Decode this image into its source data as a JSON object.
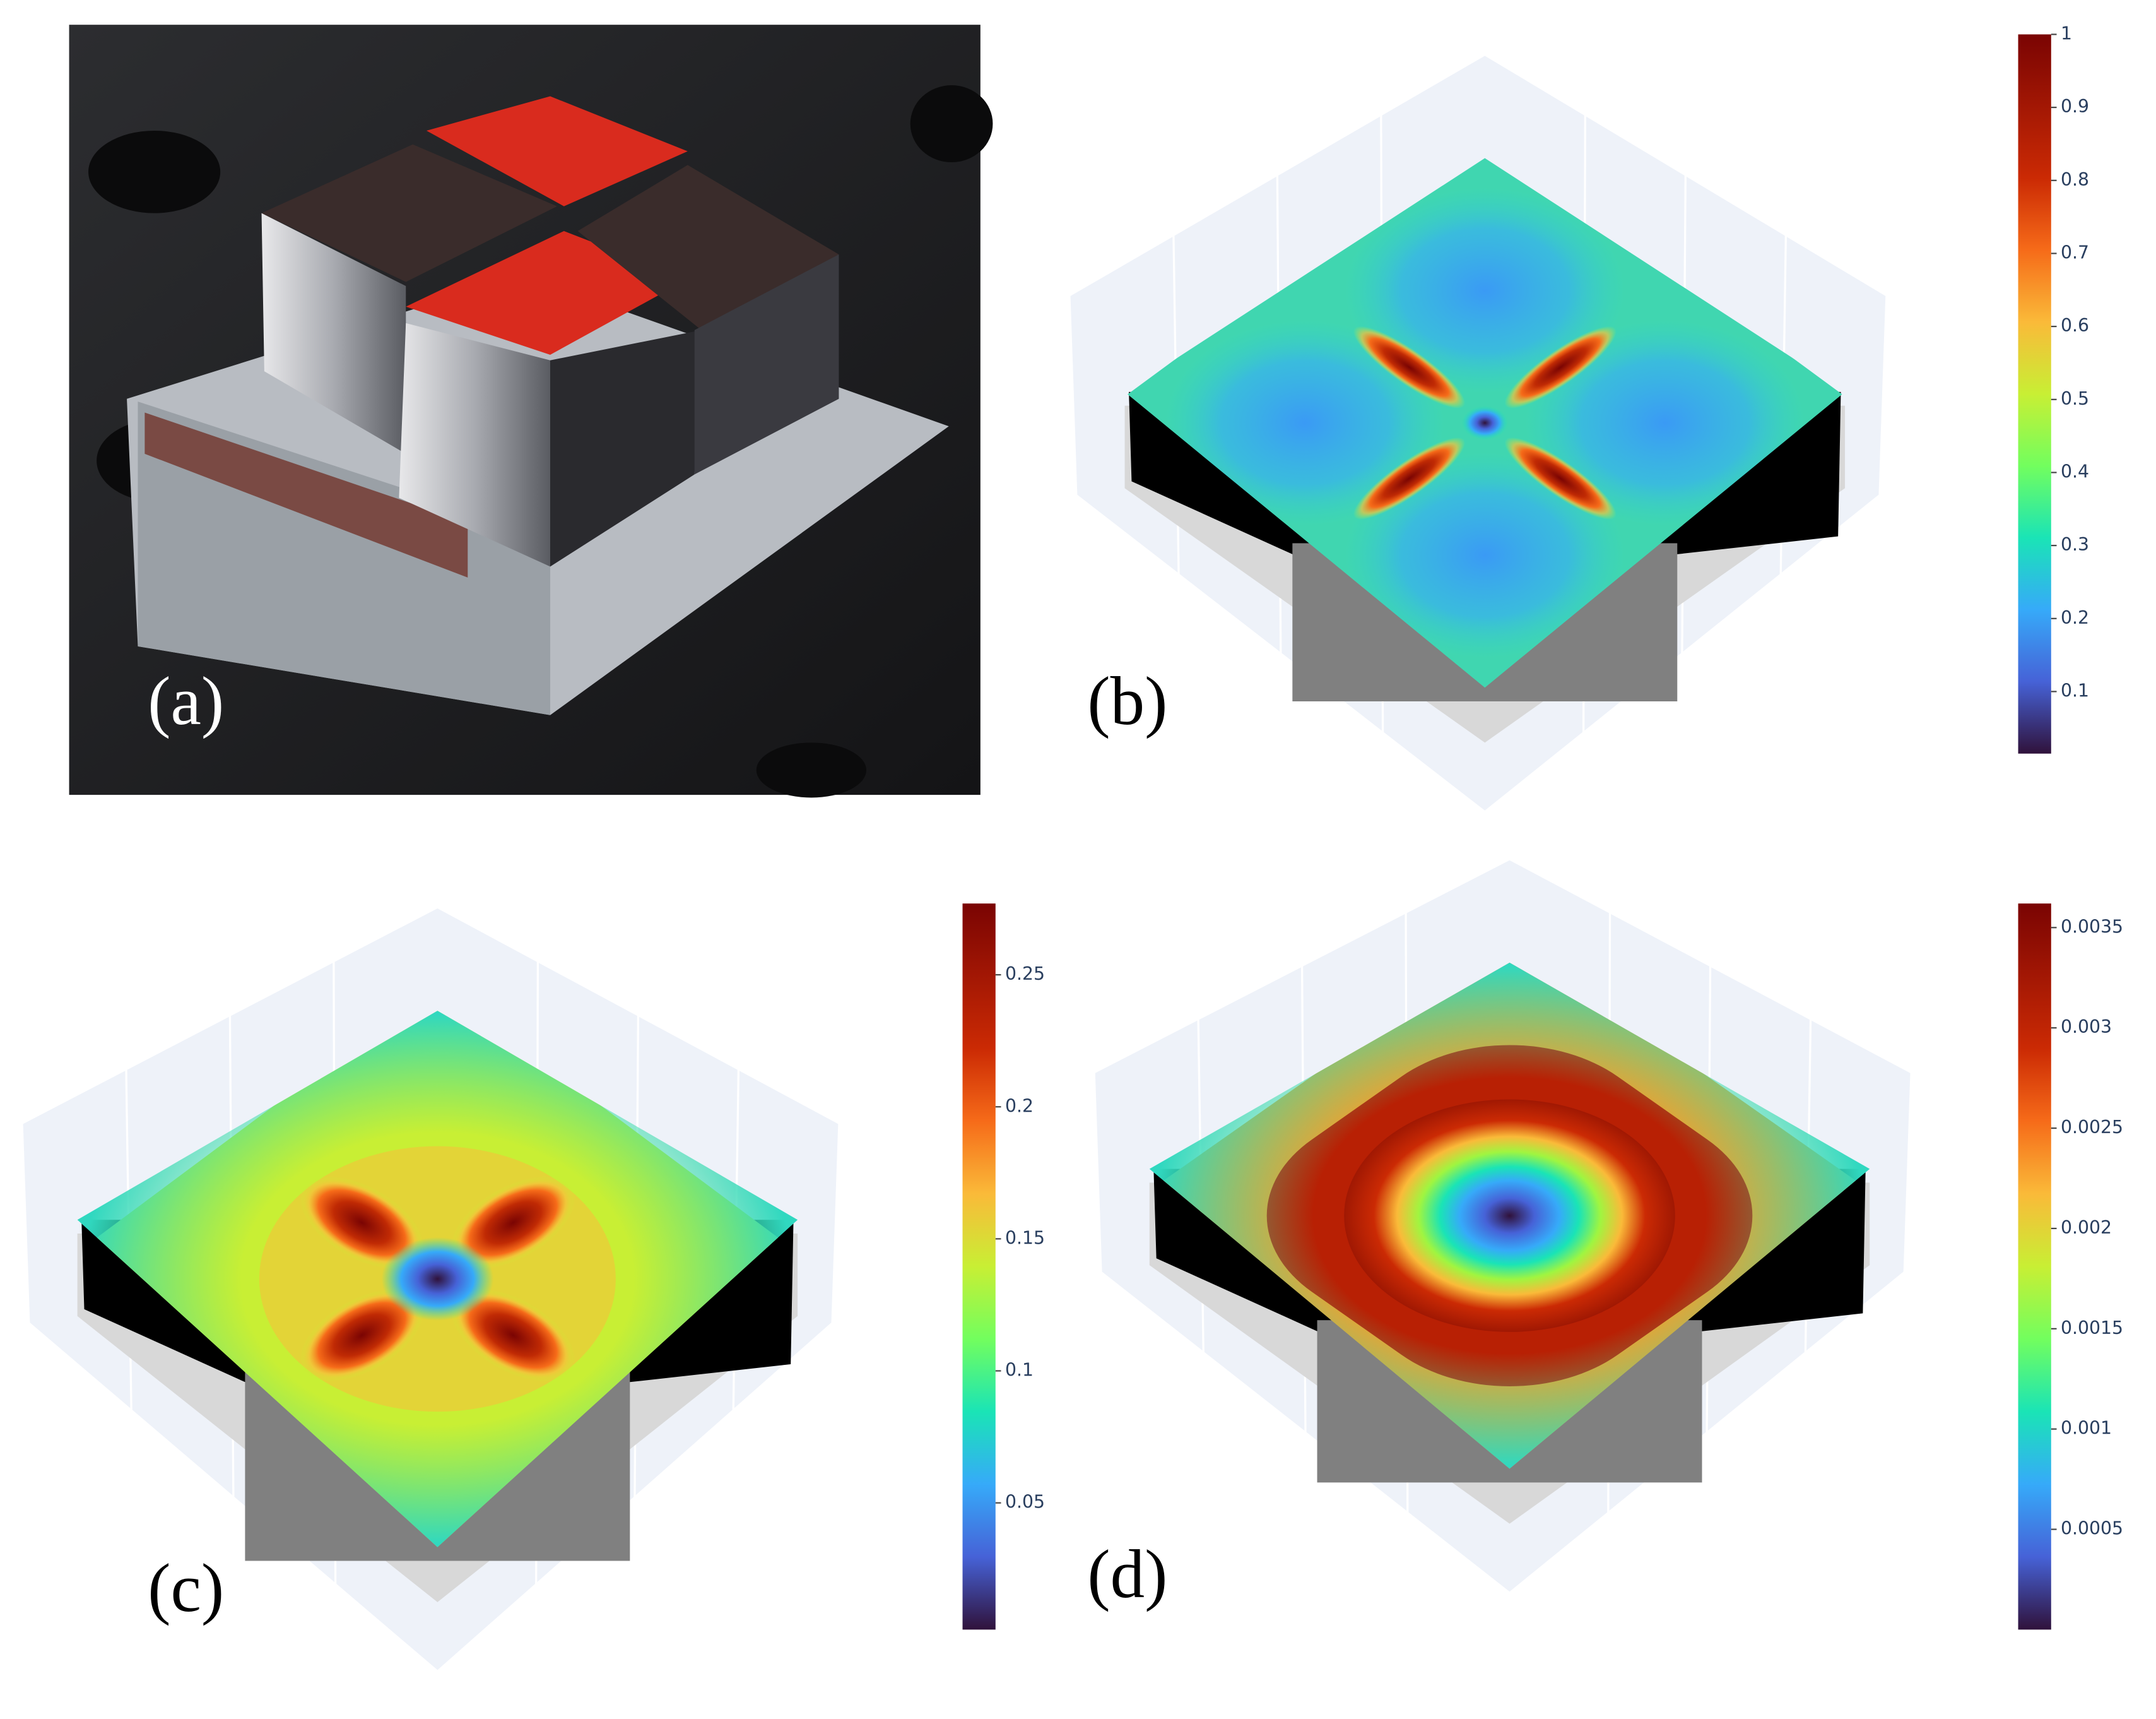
{
  "panels": [
    {
      "label": "(a)"
    },
    {
      "label": "(b)",
      "colorbar": {
        "lim": [
          0.015,
          1
        ],
        "ticks": [
          0.1,
          0.2,
          0.3,
          0.4,
          0.5,
          0.6,
          0.7,
          0.8,
          0.9,
          1
        ]
      }
    },
    {
      "label": "(c)",
      "colorbar": {
        "lim": [
          0.002,
          0.277
        ],
        "ticks": [
          0.05,
          0.1,
          0.15,
          0.2,
          0.25
        ]
      }
    },
    {
      "label": "(d)",
      "colorbar": {
        "lim": [
          0,
          0.00362
        ],
        "ticks": [
          0.0005,
          0.001,
          0.0015,
          0.002,
          0.0025,
          0.003,
          0.0035
        ]
      }
    }
  ]
}
